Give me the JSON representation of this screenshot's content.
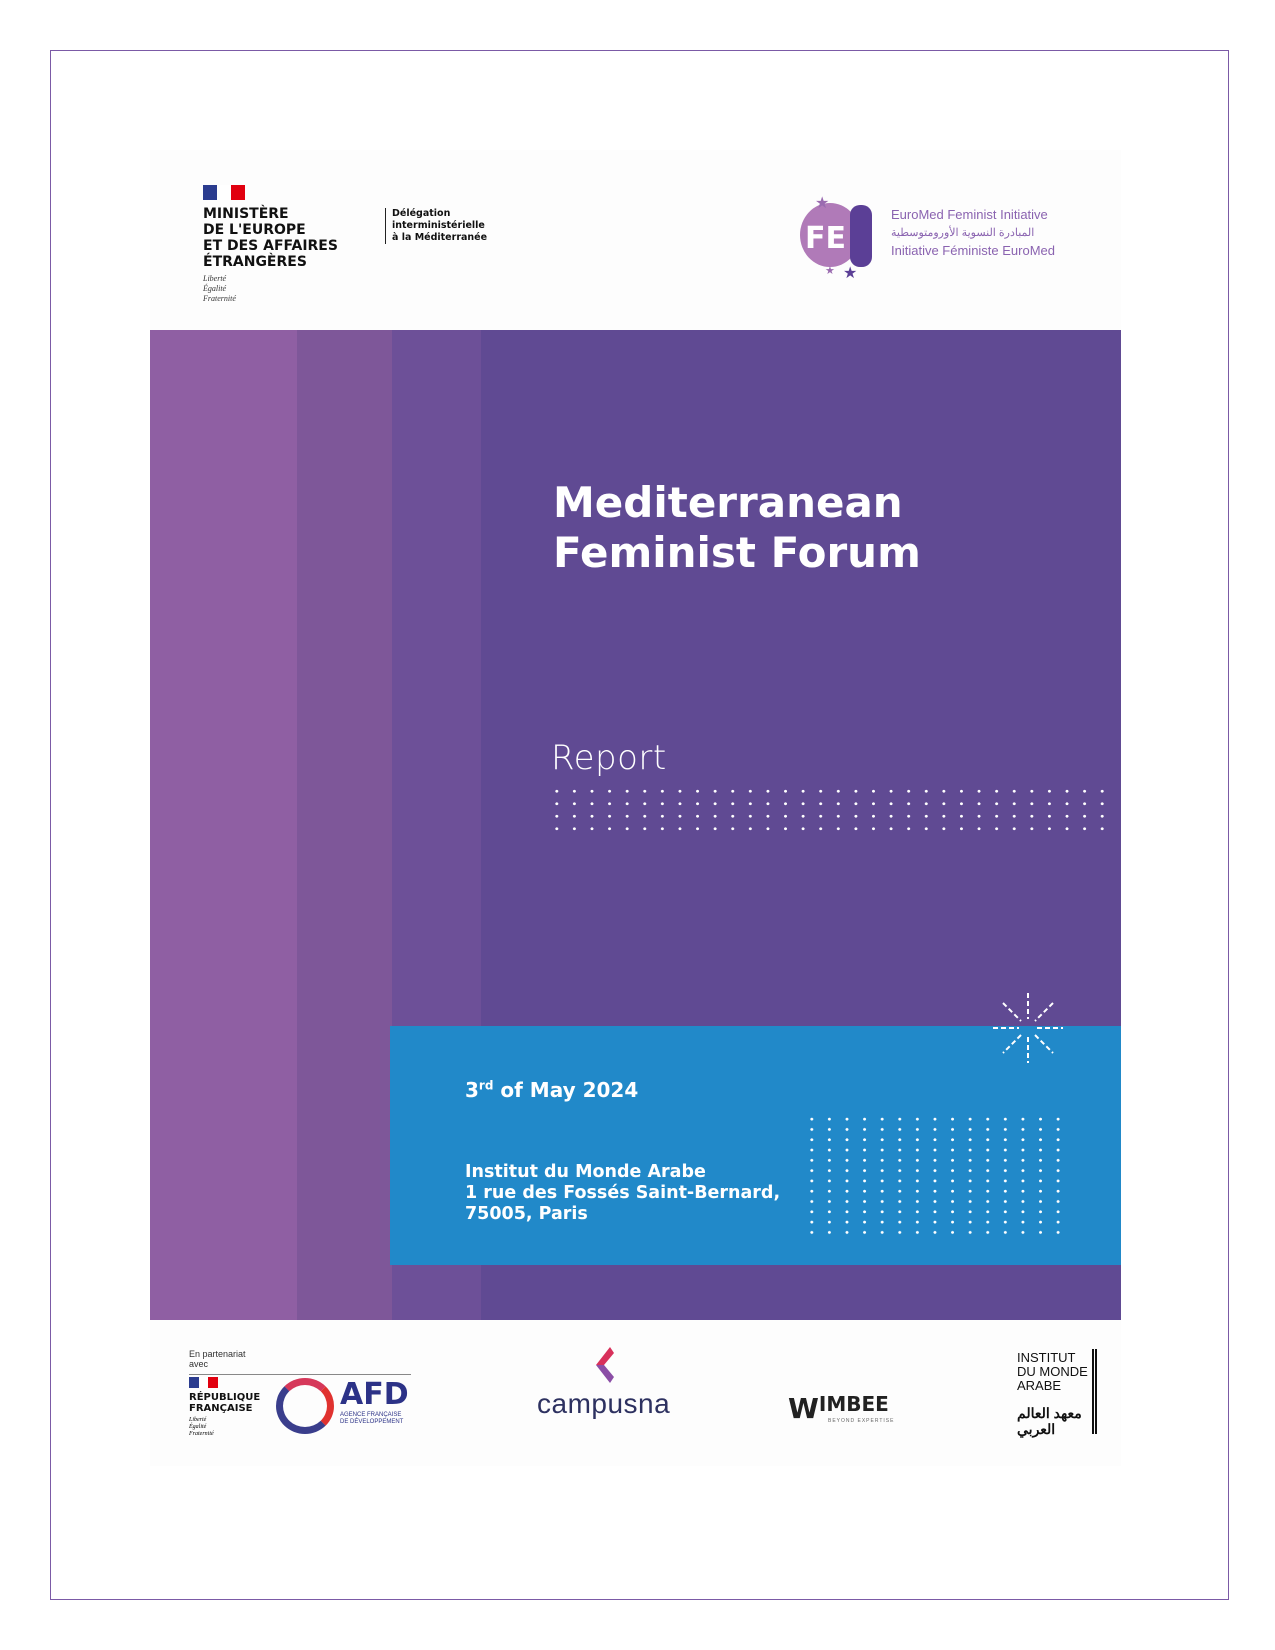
{
  "header": {
    "ministry": {
      "lines": [
        "MINISTÈRE",
        "DE L'EUROPE",
        "ET DES AFFAIRES",
        "ÉTRANGÈRES"
      ],
      "motto": [
        "Liberté",
        "Égalité",
        "Fraternité"
      ]
    },
    "delegation": [
      "Délégation",
      "interministérielle",
      "à la Méditerranée"
    ],
    "feei": {
      "monogram": "FEEI",
      "lines": [
        "EuroMed Feminist Initiative",
        "المبادرة النسوية الأورومتوسطية",
        "Initiative Féministe EuroMed"
      ]
    }
  },
  "cover": {
    "title_lines": [
      "Mediterranean",
      "Feminist Forum"
    ],
    "subtitle": "Report",
    "date_day": "3",
    "date_suffix": "rd",
    "date_rest": " of May 2024",
    "address": [
      "Institut du Monde Arabe",
      "1 rue des Fossés Saint-Bernard,",
      "75005, Paris"
    ]
  },
  "colors": {
    "purple": "#604a93",
    "blue": "#2189c9",
    "stripe1": "#8f5fa3",
    "stripe2": "#7e5799",
    "stripe3": "#6d5098"
  },
  "footer": {
    "partner_label": [
      "En partenariat",
      "avec"
    ],
    "republique": [
      "RÉPUBLIQUE",
      "FRANÇAISE"
    ],
    "republique_motto": [
      "Liberté",
      "Égalité",
      "Fraternité"
    ],
    "afd": "AFD",
    "afd_sub": [
      "AGENCE FRANÇAISE",
      "DE DÉVELOPPEMENT"
    ],
    "campusna": "campusna",
    "wimbee_w": "W",
    "wimbee": "IMBEE",
    "wimbee_sub": "BEYOND EXPERTISE",
    "ima": [
      "INSTITUT",
      "DU MONDE",
      "ARABE"
    ],
    "ima_arabic": "معهد العالم العربي"
  }
}
